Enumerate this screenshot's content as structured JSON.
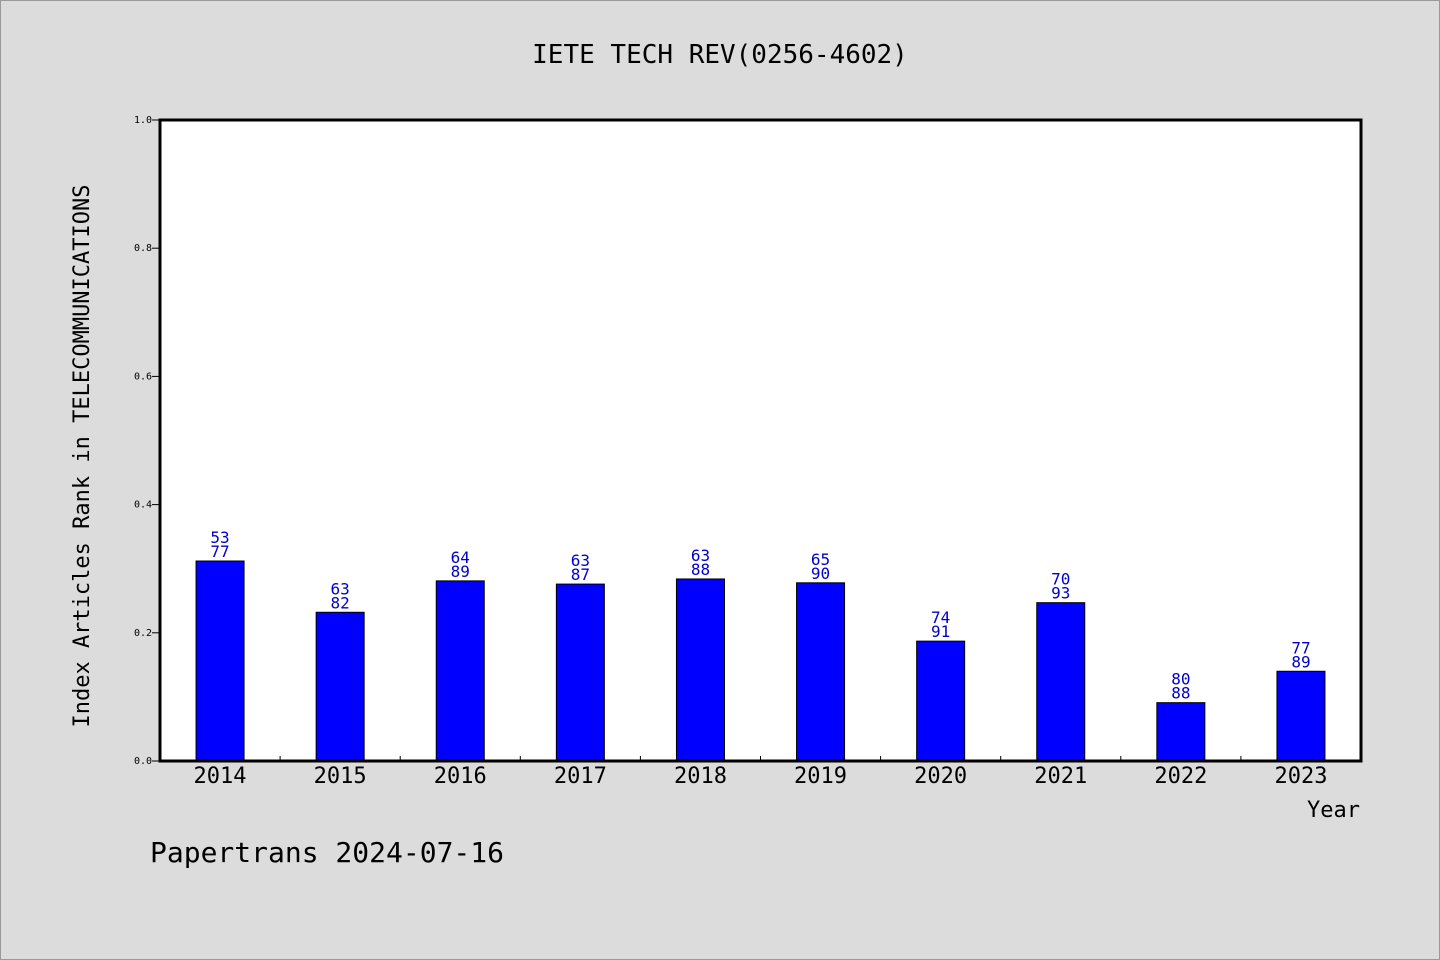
{
  "chart_data": {
    "type": "bar",
    "title": "IETE TECH REV(0256-4602)",
    "xlabel": "Year",
    "ylabel": "Index Articles Rank in TELECOMMUNICATIONS",
    "ylim": [
      0,
      1.0
    ],
    "yticks": [
      "0.0",
      "0.2",
      "0.4",
      "0.6",
      "0.8",
      "1.0"
    ],
    "categories": [
      "2014",
      "2015",
      "2016",
      "2017",
      "2018",
      "2019",
      "2020",
      "2021",
      "2022",
      "2023"
    ],
    "values": [
      0.312,
      0.232,
      0.281,
      0.276,
      0.284,
      0.278,
      0.187,
      0.247,
      0.091,
      0.14
    ],
    "label_top": [
      "53",
      "63",
      "64",
      "63",
      "63",
      "65",
      "74",
      "70",
      "80",
      "77"
    ],
    "label_bottom": [
      "77",
      "82",
      "89",
      "87",
      "88",
      "90",
      "91",
      "93",
      "88",
      "89"
    ],
    "bar_color": "#0000ff",
    "label_color": "#0000cc",
    "grid": false,
    "legend": "none"
  },
  "footer": {
    "text": "Papertrans 2024-07-16"
  }
}
